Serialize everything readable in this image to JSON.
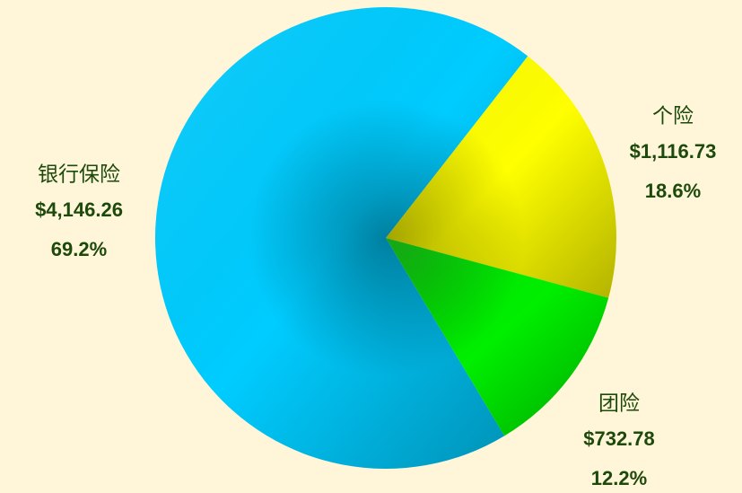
{
  "chart_data": {
    "type": "pie",
    "categories": [
      "个险",
      "团险",
      "银行保险"
    ],
    "values": [
      1116.73,
      732.78,
      4146.26
    ],
    "value_labels": [
      "$1,116.73",
      "$732.78",
      "$4,146.26"
    ],
    "percents": [
      18.6,
      12.2,
      69.2
    ],
    "percent_labels": [
      "18.6%",
      "12.2%",
      "69.2%"
    ],
    "colors": [
      "#ffff00",
      "#00ee00",
      "#00ccff"
    ]
  }
}
